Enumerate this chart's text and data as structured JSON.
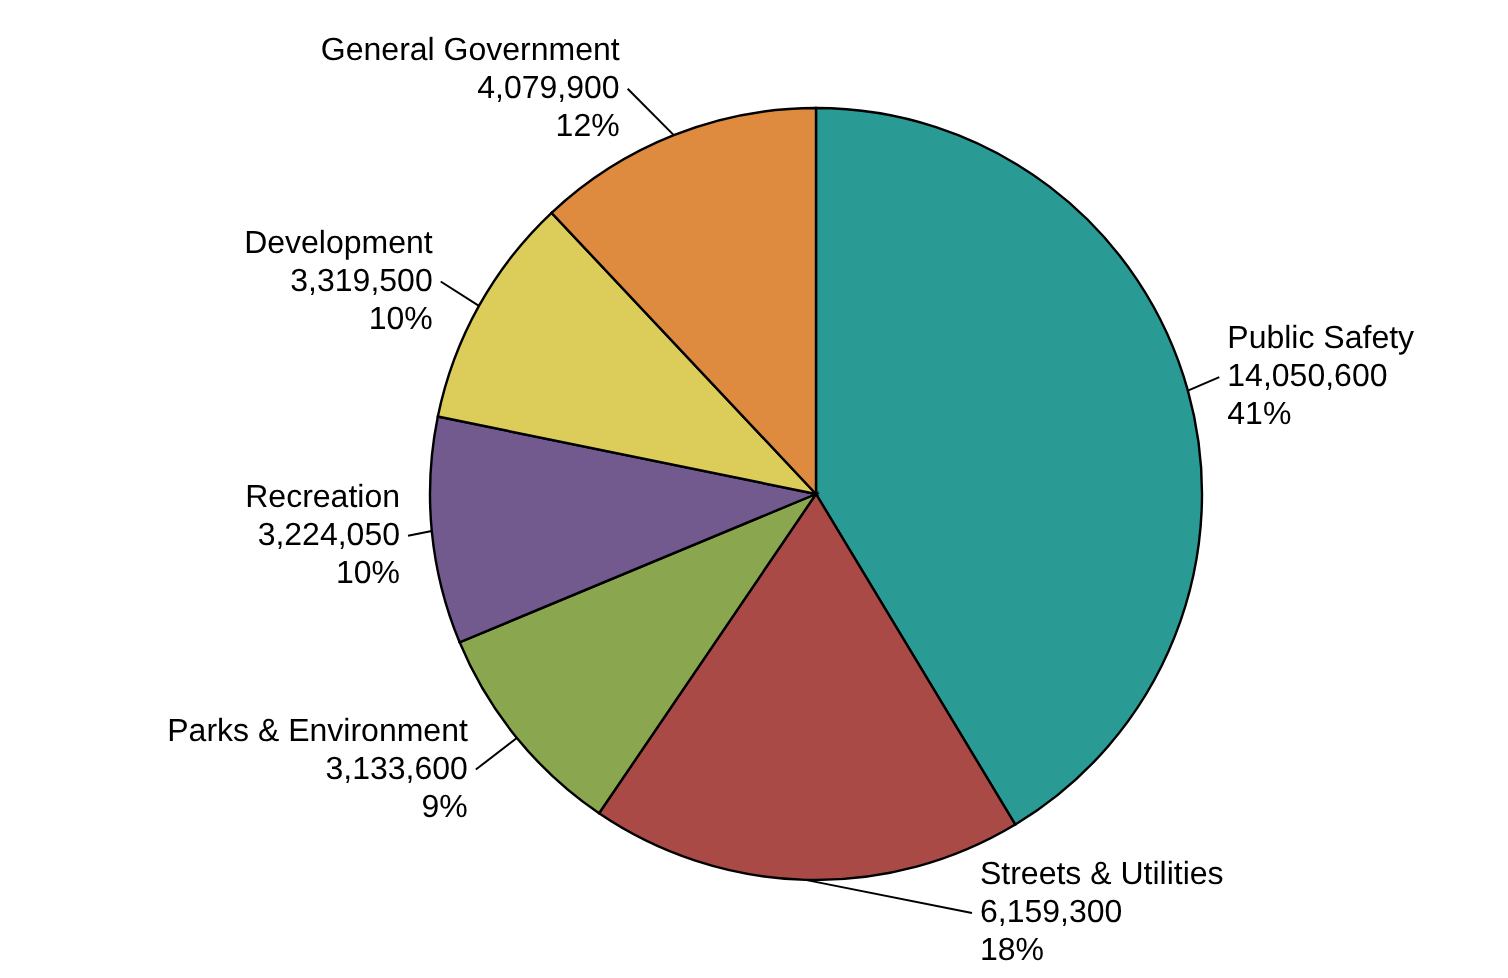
{
  "chart_data": {
    "type": "pie",
    "categories": [
      "Public Safety",
      "Streets & Utilities",
      "Parks & Environment",
      "Recreation",
      "Development",
      "General Government"
    ],
    "values": [
      14050600,
      6159300,
      3133600,
      3224050,
      3319500,
      4079900
    ],
    "colors": [
      "#2a9a94",
      "#a94a47",
      "#8aa64f",
      "#725a8f",
      "#dccd5b",
      "#de8a3f"
    ],
    "value_labels": [
      "14,050,600\n41%",
      "6,159,300\n18%",
      "3,133,600\n9%",
      "3,224,050\n10%",
      "3,319,500\n10%",
      "4,079,900\n12%"
    ]
  }
}
